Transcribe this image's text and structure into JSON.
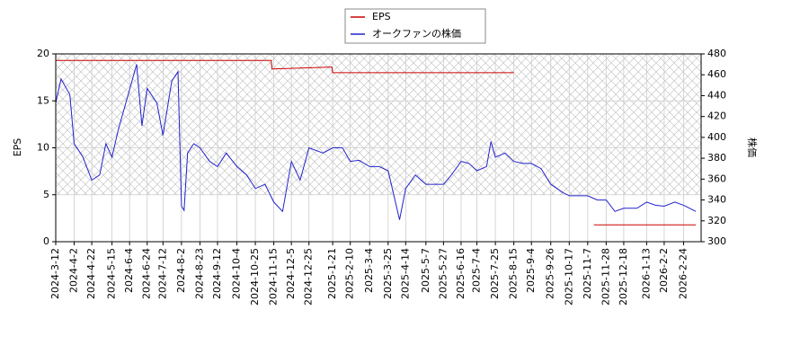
{
  "chart_data": {
    "type": "line",
    "y_label": "EPS",
    "y2_label": "株価",
    "xlim": [
      "2024-3-12",
      "2026-3-16"
    ],
    "xticks": [
      "2024-3-12",
      "2024-4-2",
      "2024-4-22",
      "2024-5-15",
      "2024-6-4",
      "2024-6-24",
      "2024-7-12",
      "2024-8-2",
      "2024-8-23",
      "2024-9-12",
      "2024-10-4",
      "2024-10-25",
      "2024-11-15",
      "2024-12-5",
      "2024-12-25",
      "2025-1-21",
      "2025-2-10",
      "2025-3-4",
      "2025-3-25",
      "2025-4-14",
      "2025-5-7",
      "2025-5-27",
      "2025-6-16",
      "2025-7-4",
      "2025-7-25",
      "2025-8-15",
      "2025-9-4",
      "2025-9-26",
      "2025-10-17",
      "2025-11-7",
      "2025-11-28",
      "2025-12-18",
      "2026-1-13",
      "2026-2-2",
      "2026-2-24"
    ],
    "ylim": [
      0,
      20
    ],
    "yticks": [
      0,
      5,
      10,
      15,
      20
    ],
    "y2lim": [
      300,
      480
    ],
    "y2ticks": [
      300,
      320,
      340,
      360,
      380,
      400,
      420,
      440,
      460,
      480
    ],
    "grid": true,
    "legend": "top",
    "series": [
      {
        "name": "EPS",
        "color": "#cc0000",
        "x": [
          "2024-3-12",
          "2024-11-12",
          "2024-11-13",
          "2025-1-20",
          "2025-1-21",
          "2025-8-15",
          "2025-8-16",
          "2025-11-14",
          "2026-3-10"
        ],
        "values": [
          19.3,
          19.3,
          18.4,
          18.6,
          18.0,
          18.0,
          null,
          1.8,
          1.8
        ]
      },
      {
        "name": "オークファンの株価",
        "color": "#2222cc",
        "axis": "y2",
        "x": [
          "2024-3-12",
          "2024-3-18",
          "2024-3-28",
          "2024-4-2",
          "2024-4-12",
          "2024-4-22",
          "2024-5-1",
          "2024-5-8",
          "2024-5-15",
          "2024-5-22",
          "2024-6-4",
          "2024-6-12",
          "2024-6-18",
          "2024-6-24",
          "2024-7-5",
          "2024-7-12",
          "2024-7-22",
          "2024-7-29",
          "2024-8-2",
          "2024-8-5",
          "2024-8-9",
          "2024-8-16",
          "2024-8-23",
          "2024-9-3",
          "2024-9-12",
          "2024-9-22",
          "2024-10-4",
          "2024-10-15",
          "2024-10-25",
          "2024-11-5",
          "2024-11-15",
          "2024-11-25",
          "2024-12-5",
          "2024-12-15",
          "2024-12-25",
          "2025-1-10",
          "2025-1-21",
          "2025-2-1",
          "2025-2-10",
          "2025-2-20",
          "2025-3-4",
          "2025-3-15",
          "2025-3-25",
          "2025-4-7",
          "2025-4-14",
          "2025-4-25",
          "2025-5-7",
          "2025-5-20",
          "2025-5-27",
          "2025-6-5",
          "2025-6-16",
          "2025-6-25",
          "2025-7-4",
          "2025-7-15",
          "2025-7-20",
          "2025-7-25",
          "2025-8-5",
          "2025-8-15",
          "2025-8-25",
          "2025-9-4",
          "2025-9-15",
          "2025-9-26",
          "2025-10-10",
          "2025-10-17",
          "2025-10-28",
          "2025-11-7",
          "2025-11-18",
          "2025-11-28",
          "2025-12-8",
          "2025-12-18",
          "2026-1-2",
          "2026-1-13",
          "2026-1-23",
          "2026-2-2",
          "2026-2-14",
          "2026-2-24",
          "2026-3-10"
        ],
        "values": [
          433,
          456,
          441,
          394,
          381,
          359,
          364,
          394,
          381,
          407,
          446,
          470,
          411,
          447,
          433,
          402,
          454,
          463,
          334,
          330,
          385,
          394,
          390,
          377,
          372,
          385,
          372,
          364,
          351,
          355,
          338,
          329,
          377,
          359,
          390,
          385,
          390,
          390,
          377,
          378,
          372,
          372,
          368,
          321,
          351,
          364,
          355,
          355,
          355,
          364,
          377,
          375,
          368,
          372,
          396,
          381,
          385,
          377,
          375,
          375,
          370,
          355,
          347,
          344,
          344,
          344,
          340,
          340,
          329,
          332,
          332,
          338,
          335,
          334,
          338,
          335,
          329
        ]
      }
    ]
  }
}
